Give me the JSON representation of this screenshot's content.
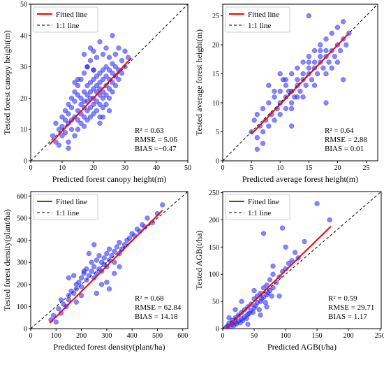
{
  "chart_data": [
    {
      "type": "scatter",
      "xlabel": "Predicted forest canopy height(m)",
      "ylabel": "Tested forest canopy height(m)",
      "xlim": [
        0,
        50
      ],
      "ylim": [
        0,
        50
      ],
      "xticks": [
        0,
        10,
        20,
        30,
        40,
        50
      ],
      "yticks": [
        0,
        10,
        20,
        30,
        40,
        50
      ],
      "legend": {
        "position": "top-left",
        "fitted_label": "Fitted line",
        "oneone_label": "1:1 line"
      },
      "stats": [
        "R² = 0.63",
        "RMSE = 5.06",
        "BIAS =−0.47"
      ],
      "fit": {
        "x": [
          6,
          32
        ],
        "y": [
          5.2,
          32.8
        ]
      },
      "colors": {
        "points": "#2020ff",
        "fit": "#ff0000",
        "oneone": "#000000"
      },
      "series": [
        {
          "x": [
            7,
            8,
            8,
            9,
            9,
            10,
            10,
            10,
            11,
            11,
            11,
            12,
            12,
            12,
            12,
            13,
            13,
            13,
            13,
            14,
            14,
            14,
            14,
            15,
            15,
            15,
            15,
            15,
            16,
            16,
            16,
            16,
            16,
            17,
            17,
            17,
            17,
            17,
            17,
            18,
            18,
            18,
            18,
            18,
            18,
            19,
            19,
            19,
            19,
            19,
            19,
            20,
            20,
            20,
            20,
            20,
            20,
            20,
            21,
            21,
            21,
            21,
            21,
            21,
            22,
            22,
            22,
            22,
            22,
            22,
            22,
            23,
            23,
            23,
            23,
            23,
            23,
            24,
            24,
            24,
            24,
            24,
            24,
            25,
            25,
            25,
            25,
            25,
            26,
            26,
            26,
            26,
            26,
            27,
            27,
            27,
            27,
            28,
            28,
            28,
            29,
            29,
            30,
            30,
            31,
            12,
            15,
            18,
            22,
            25,
            17,
            20,
            23,
            14,
            19
          ],
          "y": [
            8,
            6,
            12,
            5,
            10,
            14,
            8,
            11,
            9,
            13,
            16,
            6,
            12,
            15,
            18,
            10,
            13,
            17,
            20,
            8,
            14,
            19,
            22,
            10,
            13,
            16,
            21,
            24,
            12,
            15,
            18,
            20,
            26,
            11,
            14,
            17,
            19,
            22,
            28,
            13,
            16,
            19,
            21,
            24,
            30,
            14,
            17,
            20,
            22,
            25,
            32,
            15,
            18,
            20,
            23,
            26,
            29,
            35,
            16,
            19,
            22,
            24,
            27,
            33,
            14,
            18,
            21,
            23,
            25,
            28,
            38,
            17,
            20,
            22,
            26,
            29,
            34,
            18,
            21,
            24,
            27,
            30,
            36,
            20,
            23,
            26,
            29,
            33,
            22,
            25,
            28,
            31,
            40,
            24,
            27,
            30,
            34,
            26,
            29,
            36,
            28,
            32,
            30,
            35,
            33,
            4,
            26,
            30,
            12,
            16,
            34,
            29,
            14,
            25,
            36
          ]
        }
      ]
    },
    {
      "type": "scatter",
      "xlabel": "Predicted average forest height(m)",
      "ylabel": "Tested average forest height(m)",
      "xlim": [
        0,
        27
      ],
      "ylim": [
        0,
        27
      ],
      "xticks": [
        0,
        5,
        10,
        15,
        20,
        25
      ],
      "yticks": [
        0,
        5,
        10,
        15,
        20,
        25
      ],
      "legend": {
        "position": "top-left",
        "fitted_label": "Fitted line",
        "oneone_label": "1:1 line"
      },
      "stats": [
        "R² = 0.64",
        "RMSE = 2.88",
        "BIAS = 0.01"
      ],
      "fit": {
        "x": [
          5,
          22
        ],
        "y": [
          4.6,
          22
        ]
      },
      "colors": {
        "points": "#2020ff",
        "fit": "#ff0000",
        "oneone": "#000000"
      },
      "series": [
        {
          "x": [
            5,
            5.5,
            6,
            6,
            6.5,
            7,
            7,
            7.5,
            8,
            8,
            8.5,
            9,
            9,
            9.5,
            10,
            10,
            10,
            10.5,
            11,
            11,
            11,
            11.5,
            12,
            12,
            12,
            12.5,
            13,
            13,
            13,
            13.5,
            14,
            14,
            14,
            14.5,
            15,
            15,
            15,
            15.5,
            16,
            16,
            16,
            16.5,
            17,
            17,
            17,
            17.5,
            18,
            18,
            18,
            18.5,
            19,
            19,
            19.5,
            20,
            20,
            20.5,
            21,
            21,
            21.5,
            22,
            8,
            10,
            12,
            14,
            16,
            18,
            20,
            9,
            11,
            13,
            15,
            17,
            19,
            7,
            15,
            18,
            12,
            6,
            21
          ],
          "y": [
            5,
            7,
            4,
            8,
            6,
            9,
            5,
            7,
            10,
            6,
            8,
            11,
            7,
            9,
            12,
            8,
            10,
            14,
            9,
            11,
            13,
            12,
            10,
            12,
            15,
            11,
            13,
            14,
            16,
            12,
            14,
            15,
            17,
            13,
            15,
            16,
            18,
            14,
            16,
            17,
            19,
            15,
            17,
            18,
            20,
            16,
            18,
            19,
            21,
            17,
            19,
            22,
            18,
            20,
            23,
            19,
            21,
            24,
            20,
            22,
            13,
            15,
            9,
            11,
            13,
            15,
            17,
            12,
            14,
            11,
            17,
            19,
            16,
            3,
            25,
            10,
            6,
            2,
            14
          ]
        }
      ]
    },
    {
      "type": "scatter",
      "xlabel": "Predicted forest density(plant/ha)",
      "ylabel": "Tested forest density(plant/ha)",
      "xlim": [
        0,
        620
      ],
      "ylim": [
        0,
        620
      ],
      "xticks": [
        0,
        100,
        200,
        300,
        400,
        500,
        600
      ],
      "yticks": [
        0,
        100,
        200,
        300,
        400,
        500,
        600
      ],
      "legend": {
        "position": "top-left",
        "fitted_label": "Fitted line",
        "oneone_label": "1:1 line"
      },
      "stats": [
        "R² = 0.68",
        "RMSE = 62.84",
        "BIAS = 14.18"
      ],
      "fit": {
        "x": [
          75,
          520
        ],
        "y": [
          25,
          535
        ]
      },
      "colors": {
        "points": "#2020ff",
        "fit": "#ff0000",
        "oneone": "#000000"
      },
      "series": [
        {
          "x": [
            80,
            90,
            100,
            110,
            120,
            130,
            140,
            150,
            150,
            160,
            170,
            180,
            180,
            190,
            200,
            200,
            210,
            220,
            220,
            230,
            240,
            240,
            250,
            250,
            260,
            260,
            270,
            270,
            280,
            280,
            290,
            290,
            300,
            300,
            310,
            310,
            320,
            330,
            330,
            340,
            350,
            350,
            360,
            370,
            380,
            390,
            400,
            410,
            420,
            430,
            440,
            450,
            460,
            480,
            500,
            520,
            150,
            200,
            250,
            300,
            350,
            180,
            230,
            280,
            330,
            260,
            210,
            310,
            120,
            170
          ],
          "y": [
            40,
            60,
            30,
            90,
            70,
            110,
            100,
            150,
            130,
            170,
            160,
            200,
            180,
            210,
            230,
            190,
            250,
            220,
            270,
            240,
            260,
            300,
            230,
            280,
            250,
            310,
            270,
            330,
            300,
            260,
            320,
            290,
            340,
            280,
            310,
            360,
            330,
            350,
            300,
            370,
            340,
            390,
            360,
            380,
            400,
            410,
            430,
            420,
            450,
            440,
            470,
            460,
            500,
            480,
            520,
            560,
            230,
            150,
            380,
            210,
            280,
            120,
            340,
            200,
            250,
            160,
            260,
            180,
            130,
            240
          ]
        }
      ]
    },
    {
      "type": "scatter",
      "xlabel": "Predicted AGB(t/ha)",
      "ylabel": "Tested AGB(t/ha)",
      "xlim": [
        0,
        252
      ],
      "ylim": [
        0,
        252
      ],
      "xticks": [
        0,
        50,
        100,
        150,
        200,
        250
      ],
      "yticks": [
        0,
        50,
        100,
        150,
        200,
        250
      ],
      "legend": {
        "position": "top-left",
        "fitted_label": "Fitted line",
        "oneone_label": "1:1 line"
      },
      "stats": [
        "R² = 0.59",
        "RMSE = 29.71",
        "BIAS = 1.17"
      ],
      "fit": {
        "x": [
          5,
          172
        ],
        "y": [
          0,
          188
        ]
      },
      "colors": {
        "points": "#2020ff",
        "fit": "#ff0000",
        "oneone": "#000000"
      },
      "series": [
        {
          "x": [
            5,
            8,
            10,
            12,
            15,
            15,
            18,
            20,
            20,
            22,
            25,
            25,
            28,
            30,
            30,
            32,
            35,
            35,
            38,
            40,
            40,
            42,
            45,
            45,
            48,
            50,
            50,
            52,
            55,
            55,
            58,
            60,
            60,
            62,
            65,
            65,
            68,
            70,
            70,
            72,
            75,
            75,
            78,
            80,
            80,
            85,
            90,
            95,
            100,
            105,
            110,
            115,
            120,
            130,
            10,
            20,
            30,
            40,
            50,
            60,
            70,
            80,
            90,
            100,
            65,
            95,
            150,
            170
          ],
          "y": [
            2,
            5,
            10,
            3,
            8,
            15,
            6,
            12,
            20,
            9,
            14,
            25,
            11,
            18,
            30,
            15,
            22,
            35,
            19,
            26,
            40,
            28,
            33,
            45,
            30,
            38,
            55,
            42,
            48,
            60,
            35,
            50,
            65,
            55,
            58,
            75,
            48,
            62,
            80,
            66,
            70,
            90,
            60,
            75,
            100,
            85,
            95,
            105,
            110,
            120,
            125,
            140,
            130,
            160,
            20,
            35,
            50,
            8,
            70,
            25,
            40,
            115,
            60,
            150,
            175,
            185,
            230,
            200
          ]
        }
      ]
    }
  ]
}
